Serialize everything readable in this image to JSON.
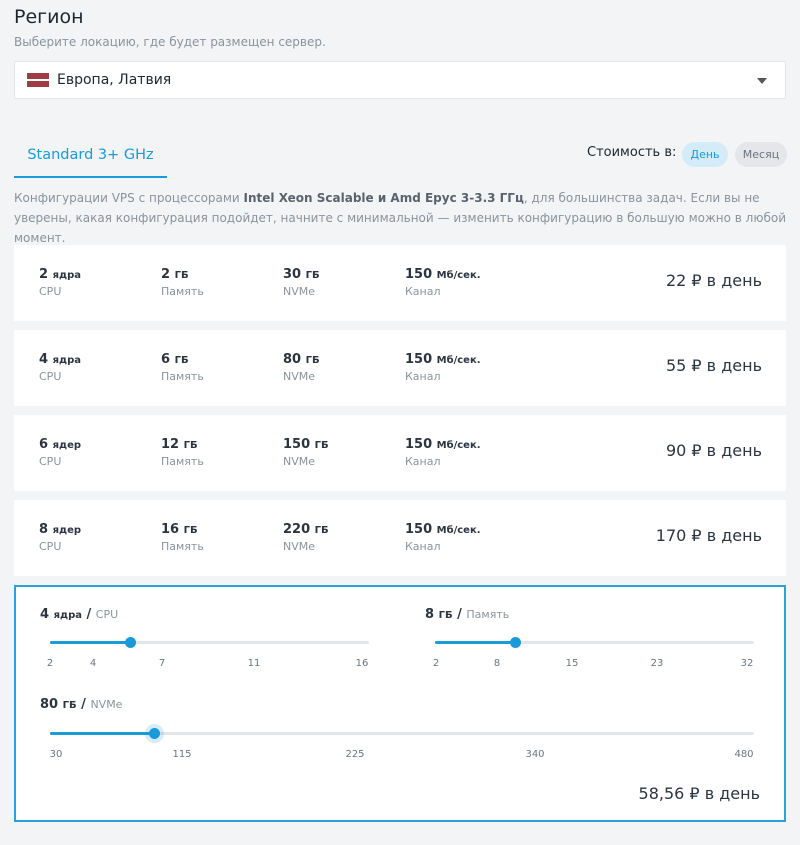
{
  "region": {
    "title": "Регион",
    "subtitle": "Выберите локацию, где будет размещен сервер.",
    "selected": "Европа, Латвия",
    "flag_colors": [
      "#a23a43",
      "#ffffff",
      "#a23a43"
    ]
  },
  "tabs": [
    {
      "label": "Standard 3+ GHz",
      "active": true
    }
  ],
  "cost": {
    "label": "Стоимость в:",
    "options": [
      {
        "label": "День",
        "active": true
      },
      {
        "label": "Месяц",
        "active": false
      }
    ]
  },
  "description": {
    "before": "Конфигурации VPS с процессорами ",
    "bold": "Intel Xeon Scalable и Amd Epyc 3-3.3 ГГц",
    "after": ", для большинства задач. Если вы не уверены, какая конфигурация подойдет, начните с минимальной — изменить конфигурацию в большую можно в любой момент."
  },
  "plans": [
    {
      "cpu": "2",
      "cpu_unit": "ядра",
      "cpu_label": "CPU",
      "ram": "2",
      "ram_unit": "ГБ",
      "ram_label": "Память",
      "disk": "30",
      "disk_unit": "ГБ",
      "disk_label": "NVMe",
      "net": "150",
      "net_unit": "Мб/сек.",
      "net_label": "Канал",
      "price": "22 ₽ в день"
    },
    {
      "cpu": "4",
      "cpu_unit": "ядра",
      "cpu_label": "CPU",
      "ram": "6",
      "ram_unit": "ГБ",
      "ram_label": "Память",
      "disk": "80",
      "disk_unit": "ГБ",
      "disk_label": "NVMe",
      "net": "150",
      "net_unit": "Мб/сек.",
      "net_label": "Канал",
      "price": "55 ₽ в день"
    },
    {
      "cpu": "6",
      "cpu_unit": "ядер",
      "cpu_label": "CPU",
      "ram": "12",
      "ram_unit": "ГБ",
      "ram_label": "Память",
      "disk": "150",
      "disk_unit": "ГБ",
      "disk_label": "NVMe",
      "net": "150",
      "net_unit": "Мб/сек.",
      "net_label": "Канал",
      "price": "90 ₽ в день"
    },
    {
      "cpu": "8",
      "cpu_unit": "ядер",
      "cpu_label": "CPU",
      "ram": "16",
      "ram_unit": "ГБ",
      "ram_label": "Память",
      "disk": "220",
      "disk_unit": "ГБ",
      "disk_label": "NVMe",
      "net": "150",
      "net_unit": "Мб/сек.",
      "net_label": "Канал",
      "price": "170 ₽ в день"
    }
  ],
  "custom": {
    "cpu": {
      "value": "4",
      "unit": "ядра",
      "sep": "/",
      "label": "CPU",
      "ticks": [
        "2",
        "4",
        "7",
        "11",
        "16"
      ],
      "level": 4
    },
    "ram": {
      "value": "8",
      "unit": "ГБ",
      "sep": "/",
      "label": "Память",
      "ticks": [
        "2",
        "8",
        "15",
        "23",
        "32"
      ],
      "level": 8
    },
    "disk": {
      "value": "80",
      "unit": "ГБ",
      "sep": "/",
      "label": "NVMe",
      "ticks": [
        "30",
        "115",
        "225",
        "340",
        "480"
      ],
      "level": 80
    },
    "total": "58,56 ₽ в день"
  }
}
